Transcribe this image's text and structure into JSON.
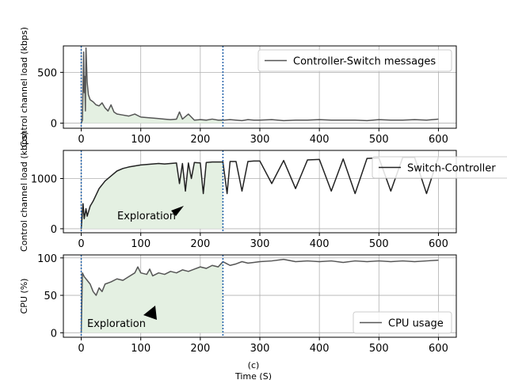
{
  "chart_data": [
    {
      "type": "line",
      "panel": "a",
      "ylabel": "Control channel load (kbps)",
      "xlabel": "",
      "xlim": [
        -30,
        630
      ],
      "ylim": [
        -50,
        760
      ],
      "xticks": [
        0,
        100,
        200,
        300,
        400,
        500,
        600
      ],
      "yticks": [
        0,
        500
      ],
      "grid": true,
      "legend_position": "top-right",
      "series": [
        {
          "name": "Controller-Switch messages",
          "color": "#555555",
          "x": [
            0,
            2,
            4,
            5,
            6,
            7,
            8,
            10,
            12,
            15,
            20,
            25,
            30,
            35,
            40,
            45,
            50,
            55,
            60,
            70,
            80,
            90,
            100,
            110,
            120,
            130,
            140,
            150,
            160,
            165,
            170,
            180,
            190,
            200,
            210,
            220,
            230,
            240,
            250,
            260,
            270,
            280,
            290,
            300,
            320,
            340,
            360,
            380,
            400,
            420,
            440,
            460,
            480,
            500,
            520,
            540,
            560,
            580,
            600
          ],
          "y": [
            0,
            30,
            700,
            300,
            460,
            120,
            740,
            400,
            280,
            230,
            210,
            180,
            170,
            200,
            150,
            120,
            180,
            110,
            90,
            80,
            70,
            90,
            60,
            55,
            50,
            45,
            40,
            35,
            40,
            110,
            40,
            90,
            30,
            35,
            30,
            40,
            30,
            30,
            35,
            30,
            25,
            35,
            30,
            30,
            35,
            25,
            30,
            30,
            35,
            30,
            30,
            30,
            25,
            35,
            30,
            30,
            35,
            30,
            40
          ]
        }
      ],
      "shaded_region": [
        0,
        238
      ],
      "vlines": [
        0,
        238
      ]
    },
    {
      "type": "line",
      "panel": "b",
      "ylabel": "Control channel load (kbps)",
      "xlabel": "",
      "xlim": [
        -30,
        630
      ],
      "ylim": [
        -80,
        1560
      ],
      "xticks": [
        0,
        100,
        200,
        300,
        400,
        500,
        600
      ],
      "yticks": [
        0,
        1000
      ],
      "grid": true,
      "legend_position": "top-right",
      "annotation": "Exploration",
      "series": [
        {
          "name": "Switch-Controller",
          "color": "#222222",
          "x": [
            0,
            3,
            5,
            8,
            10,
            15,
            20,
            30,
            40,
            50,
            60,
            70,
            80,
            90,
            100,
            110,
            120,
            130,
            140,
            150,
            160,
            165,
            170,
            175,
            180,
            185,
            190,
            200,
            205,
            210,
            220,
            230,
            238,
            245,
            250,
            260,
            270,
            280,
            290,
            300,
            320,
            340,
            360,
            380,
            400,
            420,
            440,
            460,
            480,
            500,
            520,
            540,
            560,
            580,
            600
          ],
          "y": [
            0,
            500,
            200,
            400,
            250,
            450,
            550,
            800,
            950,
            1050,
            1150,
            1200,
            1230,
            1250,
            1270,
            1280,
            1290,
            1300,
            1290,
            1300,
            1310,
            900,
            1300,
            750,
            1310,
            1000,
            1320,
            1310,
            700,
            1320,
            1330,
            1330,
            1330,
            700,
            1340,
            1340,
            750,
            1340,
            1350,
            1350,
            900,
            1360,
            800,
            1370,
            1380,
            750,
            1390,
            700,
            1400,
            1410,
            750,
            1420,
            1420,
            700,
            1430
          ]
        }
      ],
      "shaded_region": [
        0,
        238
      ],
      "vlines": [
        0,
        238
      ]
    },
    {
      "type": "line",
      "panel": "c",
      "ylabel": "CPU (%)",
      "xlabel": "Time (S)",
      "caption": "(c)",
      "xlim": [
        -30,
        630
      ],
      "ylim": [
        -6,
        104
      ],
      "xticks": [
        0,
        100,
        200,
        300,
        400,
        500,
        600
      ],
      "yticks": [
        0,
        50,
        100
      ],
      "grid": true,
      "legend_position": "bottom-right",
      "annotation": "Exploration",
      "series": [
        {
          "name": "CPU usage",
          "color": "#555555",
          "x": [
            0,
            2,
            5,
            10,
            15,
            20,
            25,
            30,
            35,
            40,
            50,
            60,
            70,
            80,
            90,
            95,
            100,
            110,
            115,
            120,
            130,
            140,
            150,
            160,
            170,
            180,
            190,
            200,
            210,
            220,
            230,
            238,
            245,
            250,
            260,
            270,
            280,
            290,
            300,
            320,
            340,
            360,
            380,
            400,
            420,
            440,
            460,
            480,
            500,
            520,
            540,
            560,
            580,
            600
          ],
          "y": [
            0,
            80,
            75,
            70,
            65,
            55,
            50,
            60,
            55,
            65,
            68,
            72,
            70,
            75,
            80,
            88,
            80,
            78,
            85,
            76,
            80,
            78,
            82,
            80,
            84,
            82,
            85,
            88,
            86,
            90,
            88,
            95,
            92,
            90,
            92,
            95,
            93,
            94,
            95,
            96,
            98,
            95,
            96,
            95,
            96,
            94,
            96,
            95,
            96,
            95,
            96,
            95,
            96,
            97
          ]
        }
      ],
      "shaded_region": [
        0,
        238
      ],
      "vlines": [
        0,
        238
      ]
    }
  ]
}
